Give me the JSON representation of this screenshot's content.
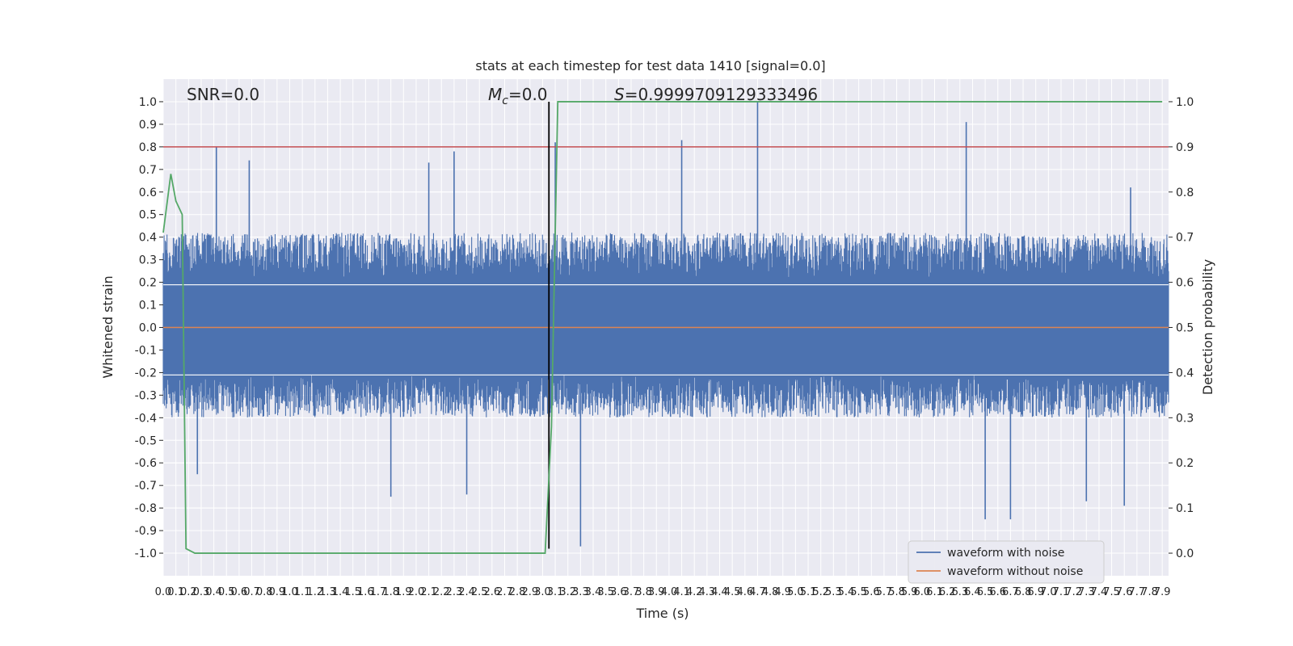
{
  "chart_data": {
    "type": "line",
    "title": "stats at each timestep for test data 1410 [signal=0.0]",
    "xlabel": "Time (s)",
    "ylabel": "Whitened strain",
    "y2label": "Detection probability",
    "xlim": [
      0.0,
      7.95
    ],
    "ylim": [
      -1.1,
      1.1
    ],
    "y2lim": [
      -0.05,
      1.05
    ],
    "grid": true,
    "legend_position": "bottom-right",
    "annotations": {
      "snr": "SNR=0.0",
      "mc_symbol": "M",
      "mc_subscript": "c",
      "mc_value": "=0.0",
      "s_symbol": "S",
      "s_value": "=0.9999709129333496"
    },
    "xticks": [
      "0.0",
      "0.1",
      "0.2",
      "0.3",
      "0.4",
      "0.5",
      "0.6",
      "0.7",
      "0.8",
      "0.9",
      "1.0",
      "1.1",
      "1.2",
      "1.3",
      "1.4",
      "1.5",
      "1.6",
      "1.7",
      "1.8",
      "1.9",
      "2.0",
      "2.1",
      "2.2",
      "2.3",
      "2.4",
      "2.5",
      "2.6",
      "2.7",
      "2.8",
      "2.9",
      "3.0",
      "3.1",
      "3.2",
      "3.3",
      "3.4",
      "3.5",
      "3.6",
      "3.7",
      "3.8",
      "3.9",
      "4.0",
      "4.1",
      "4.2",
      "4.3",
      "4.4",
      "4.5",
      "4.6",
      "4.7",
      "4.8",
      "4.9",
      "5.0",
      "5.1",
      "5.2",
      "5.3",
      "5.4",
      "5.5",
      "5.6",
      "5.7",
      "5.8",
      "5.9",
      "6.0",
      "6.1",
      "6.2",
      "6.3",
      "6.4",
      "6.5",
      "6.6",
      "6.7",
      "6.8",
      "6.9",
      "7.0",
      "7.1",
      "7.2",
      "7.3",
      "7.4",
      "7.5",
      "7.6",
      "7.7",
      "7.8",
      "7.9"
    ],
    "yticks": [
      "1.0",
      "0.9",
      "0.8",
      "0.7",
      "0.6",
      "0.5",
      "0.4",
      "0.3",
      "0.2",
      "0.1",
      "0.0",
      "-0.1",
      "-0.2",
      "-0.3",
      "-0.4",
      "-0.5",
      "-0.6",
      "-0.7",
      "-0.8",
      "-0.9",
      "-1.0"
    ],
    "y2ticks": [
      "1.0",
      "0.9",
      "0.8",
      "0.7",
      "0.6",
      "0.5",
      "0.4",
      "0.3",
      "0.2",
      "0.1",
      "0.0"
    ],
    "series": [
      {
        "name": "waveform with noise",
        "color": "#4c72b0",
        "envelope": {
          "band_upper": 0.4,
          "band_lower": -0.38,
          "spikes_upper": [
            [
              0.42,
              0.8
            ],
            [
              0.68,
              0.74
            ],
            [
              2.1,
              0.73
            ],
            [
              2.3,
              0.78
            ],
            [
              3.1,
              0.82
            ],
            [
              4.1,
              0.83
            ],
            [
              4.7,
              1.0
            ],
            [
              6.35,
              0.91
            ],
            [
              7.65,
              0.62
            ]
          ],
          "spikes_lower": [
            [
              0.27,
              -0.65
            ],
            [
              1.8,
              -0.75
            ],
            [
              2.4,
              -0.74
            ],
            [
              3.3,
              -0.97
            ],
            [
              6.5,
              -0.85
            ],
            [
              6.7,
              -0.85
            ],
            [
              7.6,
              -0.79
            ],
            [
              7.3,
              -0.77
            ]
          ]
        }
      },
      {
        "name": "waveform without noise",
        "color": "#dd8452",
        "x": [
          0.0,
          7.95
        ],
        "y": [
          0.0,
          0.0
        ]
      },
      {
        "color": "#55a868",
        "axis": "right",
        "x": [
          0.0,
          0.06,
          0.1,
          0.15,
          0.18,
          0.25,
          2.95,
          3.02,
          3.07,
          3.12,
          7.85,
          7.9
        ],
        "y": [
          0.71,
          0.84,
          0.78,
          0.75,
          0.01,
          0.0,
          0.0,
          0.0,
          0.28,
          1.0,
          1.0,
          1.0
        ]
      },
      {
        "color": "#c44e52",
        "x": [
          0.0,
          7.95
        ],
        "y": [
          0.8,
          0.8
        ]
      },
      {
        "color": "#000000",
        "type": "vline",
        "x": 3.05,
        "y": [
          -0.98,
          1.0
        ]
      }
    ]
  }
}
